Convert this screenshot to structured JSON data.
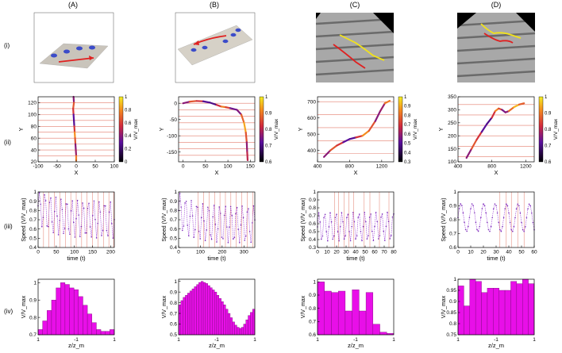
{
  "columns": [
    "(A)",
    "(B)",
    "(C)",
    "(D)"
  ],
  "rows": [
    "(i)",
    "(ii)",
    "(iii)",
    "(iv)"
  ],
  "chart_data": [
    {
      "id": "A-ii",
      "type": "scatter",
      "xlabel": "X",
      "ylabel": "Y",
      "xlim": [
        -100,
        100
      ],
      "ylim": [
        20,
        130
      ],
      "xticks": [
        -100,
        -50,
        0,
        50,
        100
      ],
      "yticks": [
        20,
        40,
        60,
        80,
        100,
        120
      ],
      "colorbar": {
        "label": "V/V_max",
        "range": [
          0,
          1
        ],
        "ticks": [
          0,
          0.2,
          0.4,
          0.6,
          0.8,
          1
        ]
      },
      "stripes_y": [
        30,
        40,
        50,
        60,
        70,
        80,
        90,
        100,
        110,
        120
      ],
      "trajectory": {
        "x": [
          -7,
          -6,
          -8,
          -7,
          -6,
          -5,
          -4,
          -3,
          -2,
          -1,
          0,
          0
        ],
        "y": [
          130,
          120,
          110,
          100,
          90,
          80,
          70,
          60,
          50,
          40,
          30,
          22
        ]
      }
    },
    {
      "id": "B-ii",
      "type": "scatter",
      "xlabel": "X",
      "ylabel": "Y",
      "xlim": [
        -10,
        160
      ],
      "ylim": [
        -180,
        20
      ],
      "xticks": [
        0,
        50,
        100,
        150
      ],
      "yticks": [
        -150,
        -100,
        -50,
        0
      ],
      "colorbar": {
        "label": "V/V_max",
        "range": [
          0.6,
          1
        ],
        "ticks": [
          0.6,
          0.7,
          0.8,
          0.9,
          1
        ]
      },
      "stripes_y": [
        0,
        -20,
        -40,
        -60,
        -80,
        -100,
        -120,
        -140,
        -160
      ],
      "trajectory": {
        "x": [
          0,
          15,
          30,
          45,
          60,
          75,
          85,
          95,
          105,
          120,
          130,
          136,
          140,
          142,
          143,
          144
        ],
        "y": [
          0,
          5,
          7,
          6,
          2,
          -5,
          -10,
          -12,
          -15,
          -20,
          -35,
          -60,
          -90,
          -120,
          -150,
          -175
        ]
      }
    },
    {
      "id": "C-ii",
      "type": "scatter",
      "xlabel": "X",
      "ylabel": "Y",
      "xlim": [
        400,
        1350
      ],
      "ylim": [
        330,
        730
      ],
      "xticks": [
        400,
        800,
        1200
      ],
      "yticks": [
        400,
        500,
        600,
        700
      ],
      "colorbar": {
        "label": "V/V_max",
        "range": [
          0.3,
          1
        ],
        "ticks": [
          0.3,
          0.4,
          0.5,
          0.6,
          0.7,
          0.8,
          0.9,
          1
        ]
      },
      "stripes_y": [
        380,
        460,
        540,
        620,
        700
      ],
      "trajectory": {
        "x": [
          480,
          560,
          640,
          720,
          800,
          880,
          960,
          1040,
          1120,
          1180,
          1240,
          1300
        ],
        "y": [
          360,
          400,
          430,
          450,
          470,
          480,
          490,
          520,
          580,
          640,
          690,
          705
        ]
      }
    },
    {
      "id": "D-ii",
      "type": "scatter",
      "xlabel": "X",
      "ylabel": "Y",
      "xlim": [
        400,
        1300
      ],
      "ylim": [
        100,
        350
      ],
      "xticks": [
        400,
        800,
        1200
      ],
      "yticks": [
        100,
        150,
        200,
        250,
        300,
        350
      ],
      "colorbar": {
        "label": "V/V_max",
        "range": [
          0.6,
          1
        ],
        "ticks": [
          0.6,
          0.7,
          0.8,
          0.9,
          1
        ]
      },
      "stripes_y": [
        120,
        160,
        200,
        240,
        280,
        320
      ],
      "trajectory": {
        "x": [
          500,
          560,
          620,
          680,
          740,
          800,
          840,
          880,
          920,
          960,
          1000,
          1060,
          1120,
          1180
        ],
        "y": [
          115,
          150,
          185,
          215,
          245,
          270,
          295,
          305,
          300,
          290,
          295,
          310,
          320,
          325
        ]
      }
    },
    {
      "id": "A-iii",
      "type": "line",
      "xlabel": "time (t)",
      "ylabel": "Speed (V/V_max)",
      "xlim": [
        0,
        210
      ],
      "ylim": [
        0.4,
        1
      ],
      "xticks": [
        0,
        50,
        100,
        150,
        200
      ],
      "yticks": [
        0.4,
        0.5,
        0.6,
        0.7,
        0.8,
        0.9,
        1
      ],
      "vlines": [
        15,
        30,
        45,
        60,
        75,
        90,
        105,
        120,
        135,
        150,
        165,
        180,
        195,
        208
      ],
      "series_params": {
        "start": 0.95,
        "base": 0.7,
        "amp": 0.2,
        "period": 15,
        "decay": 40
      }
    },
    {
      "id": "B-iii",
      "type": "line",
      "xlabel": "time (t)",
      "ylabel": "Speed (V/V_max)",
      "xlim": [
        0,
        350
      ],
      "ylim": [
        0.4,
        1
      ],
      "xticks": [
        0,
        100,
        200,
        300
      ],
      "yticks": [
        0.4,
        0.5,
        0.6,
        0.7,
        0.8,
        0.9,
        1
      ],
      "vlines": [
        90,
        115,
        140,
        165,
        190,
        215,
        240,
        265,
        290,
        315,
        340
      ],
      "series_params": {
        "start": 0.9,
        "base": 0.65,
        "amp": 0.2,
        "period": 26,
        "decay": 60
      }
    },
    {
      "id": "C-iii",
      "type": "line",
      "xlabel": "time (t)",
      "ylabel": "Speed (V/V_max)",
      "xlim": [
        0,
        80
      ],
      "ylim": [
        0.3,
        1
      ],
      "xticks": [
        0,
        10,
        20,
        30,
        40,
        50,
        60,
        70,
        80
      ],
      "yticks": [
        0.3,
        0.4,
        0.5,
        0.6,
        0.7,
        0.8,
        0.9,
        1
      ],
      "vlines": [
        18,
        22,
        28,
        33,
        38,
        49,
        55,
        65,
        75
      ],
      "series_params": {
        "start": 0.5,
        "base": 0.65,
        "amp": 0.18,
        "period": 6,
        "decay": 1000
      }
    },
    {
      "id": "D-iii",
      "type": "line",
      "xlabel": "time (t)",
      "ylabel": "Speed (V/V_max)",
      "xlim": [
        0,
        60
      ],
      "ylim": [
        0.6,
        1
      ],
      "xticks": [
        0,
        10,
        20,
        30,
        40,
        50,
        60
      ],
      "yticks": [
        0.6,
        0.7,
        0.8,
        0.9,
        1
      ],
      "vlines": [
        33,
        38,
        42,
        47,
        52
      ],
      "series_params": {
        "start": 0.84,
        "base": 0.78,
        "amp": 0.1,
        "period": 9,
        "decay": 1000
      }
    },
    {
      "id": "A-iv",
      "type": "bar",
      "xlabel": "z/z_m",
      "ylabel": "V/V_max",
      "xtick_labels": [
        "1",
        "-1",
        "1"
      ],
      "ylim": [
        0.7,
        1.02
      ],
      "yticks": [
        0.7,
        0.8,
        0.9,
        1
      ],
      "values": [
        0.73,
        0.78,
        0.84,
        0.9,
        0.97,
        1.0,
        0.99,
        0.97,
        0.96,
        0.92,
        0.87,
        0.82,
        0.77,
        0.73,
        0.72,
        0.72,
        0.73
      ]
    },
    {
      "id": "B-iv",
      "type": "bar",
      "xlabel": "z/z_m",
      "ylabel": "V/V_max",
      "xtick_labels": [
        "1",
        "-1",
        "1"
      ],
      "ylim": [
        0.5,
        1.02
      ],
      "yticks": [
        0.5,
        0.6,
        0.7,
        0.8,
        0.9,
        1
      ],
      "values": [
        0.78,
        0.82,
        0.85,
        0.87,
        0.89,
        0.91,
        0.93,
        0.95,
        0.97,
        0.99,
        1.0,
        0.99,
        0.98,
        0.96,
        0.94,
        0.92,
        0.9,
        0.87,
        0.84,
        0.81,
        0.78,
        0.74,
        0.7,
        0.66,
        0.62,
        0.59,
        0.57,
        0.56,
        0.57,
        0.6,
        0.64,
        0.68,
        0.71,
        0.74
      ]
    },
    {
      "id": "C-iv",
      "type": "bar",
      "xlabel": "z/z_m",
      "ylabel": "V/V_max",
      "xtick_labels": [
        "1",
        "-1",
        "1"
      ],
      "ylim": [
        0.6,
        1.02
      ],
      "yticks": [
        0.6,
        0.7,
        0.8,
        0.9,
        1
      ],
      "values": [
        1.0,
        0.93,
        0.92,
        0.93,
        0.78,
        0.94,
        0.78,
        0.92,
        0.68,
        0.62,
        0.61
      ]
    },
    {
      "id": "D-iv",
      "type": "bar",
      "xlabel": "z/z_m",
      "ylabel": "V/V_max",
      "xtick_labels": [
        "1",
        "-1",
        "1"
      ],
      "ylim": [
        0.75,
        1.0
      ],
      "yticks": [
        0.75,
        0.8,
        0.85,
        0.9,
        0.95,
        1
      ],
      "values": [
        0.97,
        0.88,
        1.0,
        0.99,
        0.94,
        0.96,
        0.96,
        0.95,
        0.95,
        0.99,
        0.98,
        1.0,
        0.98
      ]
    }
  ]
}
